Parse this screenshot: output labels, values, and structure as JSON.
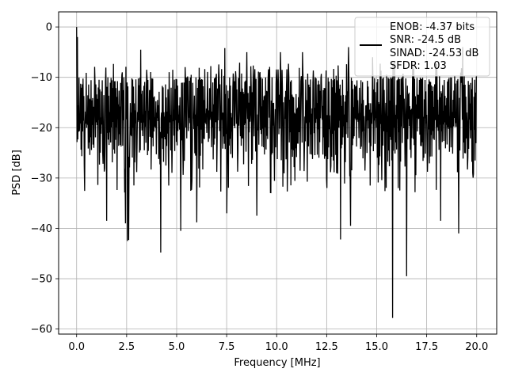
{
  "chart_data": {
    "type": "line",
    "title": "",
    "xlabel": "Frequency [MHz]",
    "ylabel": "PSD [dB]",
    "xlim": [
      -0.9,
      21.0
    ],
    "ylim": [
      -61.0,
      3.0
    ],
    "xticks": [
      0.0,
      2.5,
      5.0,
      7.5,
      10.0,
      12.5,
      15.0,
      17.5,
      20.0
    ],
    "xtick_labels": [
      "0.0",
      "2.5",
      "5.0",
      "7.5",
      "10.0",
      "12.5",
      "15.0",
      "17.5",
      "20.0"
    ],
    "yticks": [
      0,
      -10,
      -20,
      -30,
      -40,
      -50,
      -60
    ],
    "ytick_labels": [
      "0",
      "−10",
      "−20",
      "−30",
      "−40",
      "−50",
      "−60"
    ],
    "grid": true,
    "line_color": "#000000",
    "legend_position": "top-right",
    "legend_lines": [
      "ENOB: -4.37 bits",
      "SNR: -24.5 dB",
      "SINAD: -24.53 dB",
      "SFDR: 1.03"
    ],
    "series": [
      {
        "x_range": [
          0.0,
          20.0
        ],
        "num_points": 1000,
        "typical_upper_envelope_db": -10,
        "typical_lower_envelope_db": -27,
        "peaks": [
          {
            "x": 0.0,
            "y": 0.0
          },
          {
            "x": 0.05,
            "y": -2.0
          },
          {
            "x": 3.2,
            "y": -4.5
          },
          {
            "x": 7.4,
            "y": -4.2
          },
          {
            "x": 8.5,
            "y": -5.0
          },
          {
            "x": 10.2,
            "y": -5.0
          },
          {
            "x": 11.3,
            "y": -5.0
          },
          {
            "x": 13.6,
            "y": -4.0
          },
          {
            "x": 14.8,
            "y": -6.0
          },
          {
            "x": 19.3,
            "y": -4.0
          }
        ],
        "dips": [
          {
            "x": 1.5,
            "y": -38.5
          },
          {
            "x": 2.45,
            "y": -39.0
          },
          {
            "x": 2.55,
            "y": -42.5
          },
          {
            "x": 2.6,
            "y": -42.3
          },
          {
            "x": 4.2,
            "y": -44.8
          },
          {
            "x": 5.2,
            "y": -40.5
          },
          {
            "x": 6.0,
            "y": -38.8
          },
          {
            "x": 7.5,
            "y": -37.0
          },
          {
            "x": 9.0,
            "y": -37.5
          },
          {
            "x": 13.2,
            "y": -42.2
          },
          {
            "x": 13.7,
            "y": -39.5
          },
          {
            "x": 15.8,
            "y": -57.8
          },
          {
            "x": 16.5,
            "y": -49.5
          },
          {
            "x": 18.2,
            "y": -38.5
          },
          {
            "x": 19.1,
            "y": -41.0
          },
          {
            "x": 19.8,
            "y": -29.0
          }
        ]
      }
    ]
  }
}
